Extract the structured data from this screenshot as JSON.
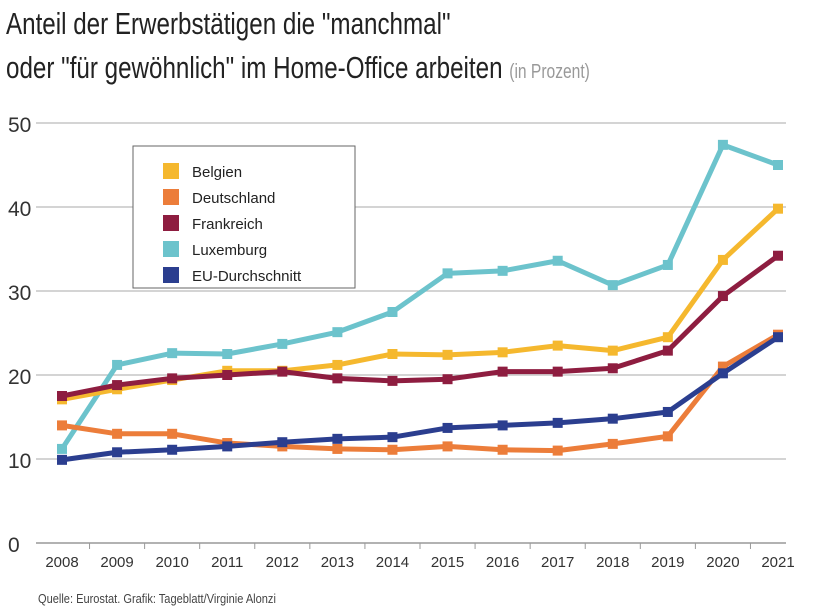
{
  "chart_data": {
    "type": "line",
    "title_line1": "Anteil der Erwerbstätigen die \"manchmal\"",
    "title_line2": "oder \"für gewöhnlich\" im Home-Office arbeiten",
    "unit": "(in Prozent)",
    "source": "Quelle: Eurostat. Grafik: Tageblatt/Virginie Alonzi",
    "x": [
      2008,
      2009,
      2010,
      2011,
      2012,
      2013,
      2014,
      2015,
      2016,
      2017,
      2018,
      2019,
      2020,
      2021
    ],
    "ylim": [
      0,
      50
    ],
    "yticks": [
      0,
      10,
      20,
      30,
      40,
      50
    ],
    "grid": true,
    "legend_position": "top-left",
    "series": [
      {
        "name": "Belgien",
        "color": "#f5b82e",
        "values": [
          17.1,
          18.3,
          19.4,
          20.5,
          20.5,
          21.2,
          22.5,
          22.4,
          22.7,
          23.5,
          22.9,
          24.5,
          33.7,
          39.8
        ]
      },
      {
        "name": "Deutschland",
        "color": "#ec7d3a",
        "values": [
          14.0,
          13.0,
          13.0,
          11.9,
          11.5,
          11.2,
          11.1,
          11.5,
          11.1,
          11.0,
          11.8,
          12.7,
          21.0,
          24.8
        ]
      },
      {
        "name": "Frankreich",
        "color": "#8e1d40",
        "values": [
          17.5,
          18.8,
          19.6,
          20.0,
          20.4,
          19.6,
          19.3,
          19.5,
          20.4,
          20.4,
          20.8,
          22.9,
          29.4,
          34.2
        ]
      },
      {
        "name": "Luxemburg",
        "color": "#6cc3cc",
        "values": [
          11.2,
          21.2,
          22.6,
          22.5,
          23.7,
          25.1,
          27.5,
          32.1,
          32.4,
          33.6,
          30.7,
          33.1,
          47.4,
          45.0
        ]
      },
      {
        "name": "EU-Durchschnitt",
        "color": "#2b3e8f",
        "values": [
          9.9,
          10.8,
          11.1,
          11.5,
          12.0,
          12.4,
          12.6,
          13.7,
          14.0,
          14.3,
          14.8,
          15.6,
          20.2,
          24.5
        ]
      }
    ]
  }
}
